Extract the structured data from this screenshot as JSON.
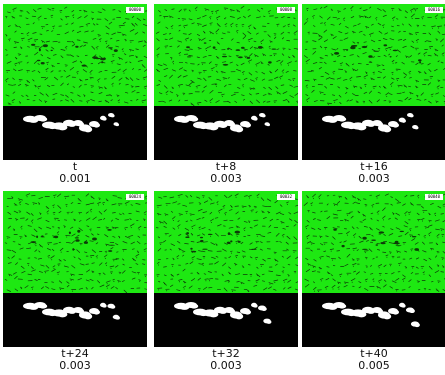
{
  "colors": {
    "field": "#1ee812",
    "noise": "#0d3a08",
    "mask_background": "#000000",
    "blob": "#ffffff"
  },
  "panels": [
    {
      "time": "t",
      "value": "0.001",
      "stamp": "00000"
    },
    {
      "time": "t+8",
      "value": "0.003",
      "stamp": "00008"
    },
    {
      "time": "t+16",
      "value": "0.003",
      "stamp": "00016"
    },
    {
      "time": "t+24",
      "value": "0.003",
      "stamp": "00024"
    },
    {
      "time": "t+32",
      "value": "0.003",
      "stamp": "00032"
    },
    {
      "time": "t+40",
      "value": "0.005",
      "stamp": "00040"
    }
  ]
}
